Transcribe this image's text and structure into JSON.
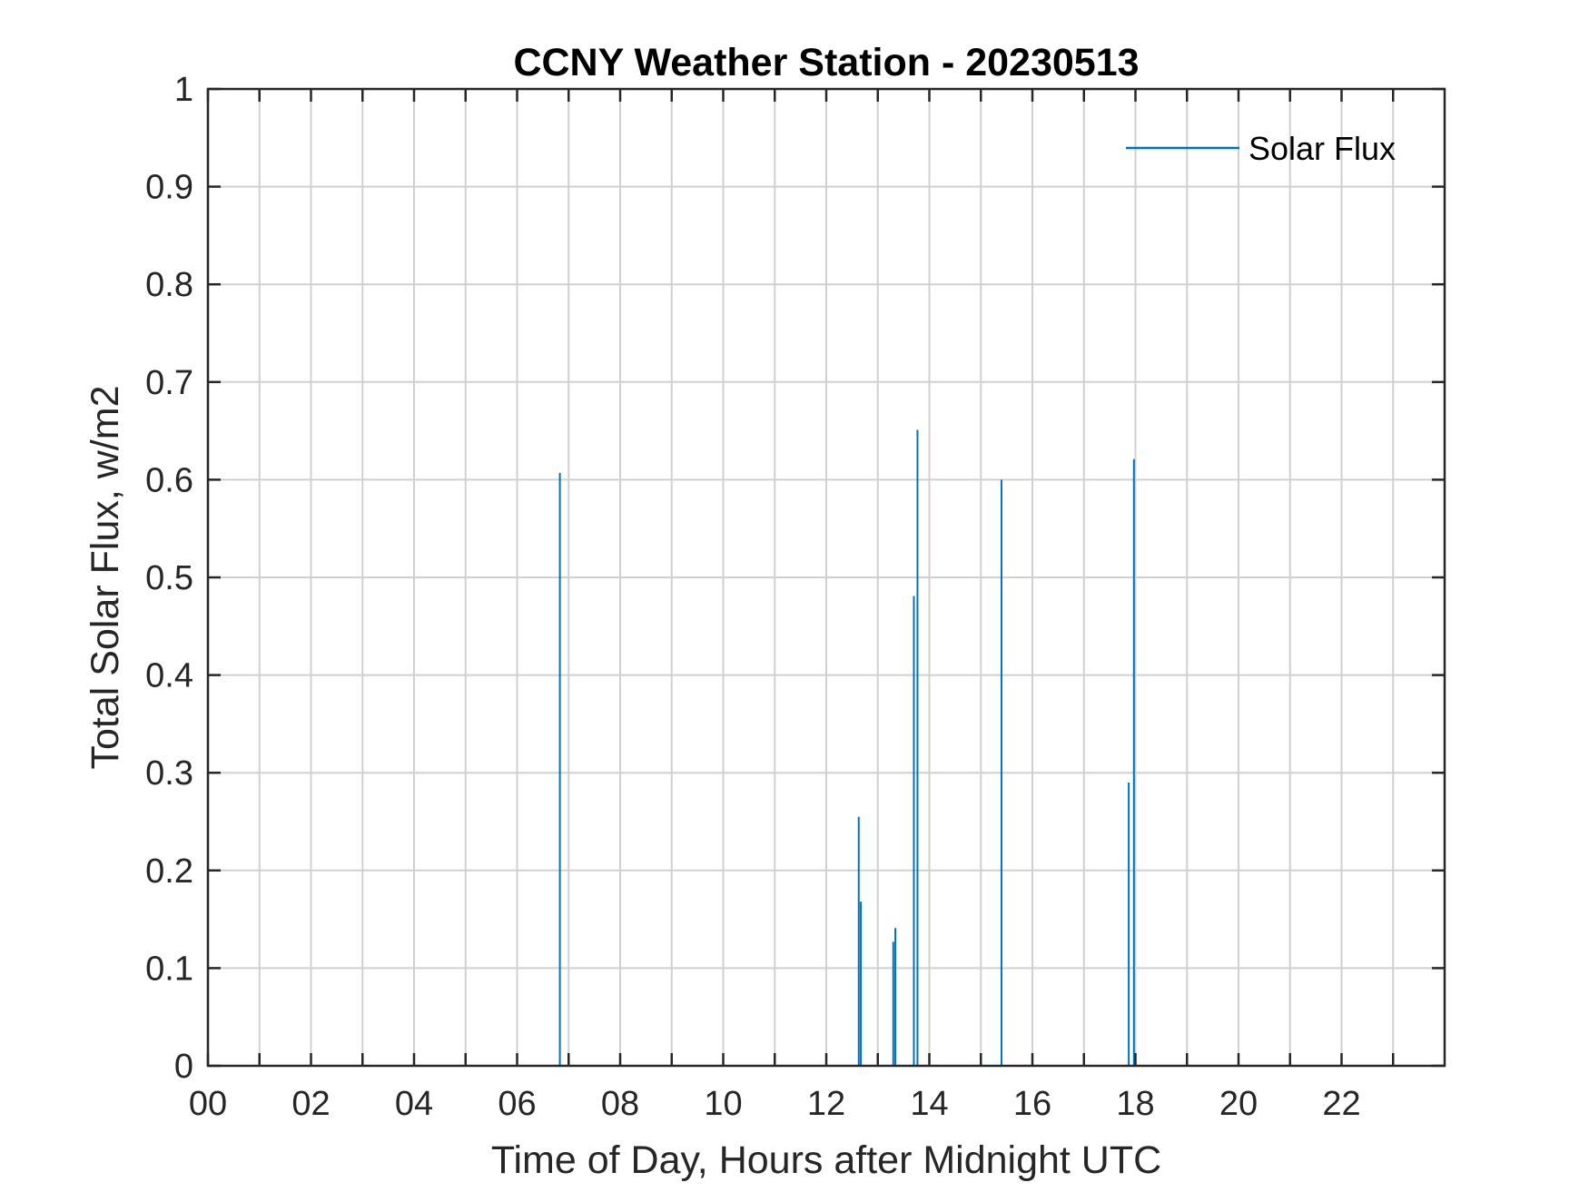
{
  "chart_data": {
    "type": "line",
    "title": "CCNY Weather Station - 20230513",
    "xlabel": "Time of Day, Hours after Midnight UTC",
    "ylabel": "Total Solar Flux, w/m2",
    "xlim": [
      0,
      24
    ],
    "ylim": [
      0,
      1
    ],
    "xtick_values": [
      0,
      2,
      4,
      6,
      8,
      10,
      12,
      14,
      16,
      18,
      20,
      22
    ],
    "xtick_labels": [
      "00",
      "02",
      "04",
      "06",
      "08",
      "10",
      "12",
      "14",
      "16",
      "18",
      "20",
      "22"
    ],
    "xgrid_values": [
      0,
      1,
      2,
      3,
      4,
      5,
      6,
      7,
      8,
      9,
      10,
      11,
      12,
      13,
      14,
      15,
      16,
      17,
      18,
      19,
      20,
      21,
      22,
      23
    ],
    "ytick_values": [
      0,
      0.1,
      0.2,
      0.3,
      0.4,
      0.5,
      0.6,
      0.7,
      0.8,
      0.9,
      1
    ],
    "ytick_labels": [
      "0",
      "0.1",
      "0.2",
      "0.3",
      "0.4",
      "0.5",
      "0.6",
      "0.7",
      "0.8",
      "0.9",
      "1"
    ],
    "grid": true,
    "legend_position": "top-right",
    "series": [
      {
        "name": "Solar Flux",
        "color": "#0072BD",
        "spikes": [
          {
            "x": 6.83,
            "y": 0.607
          },
          {
            "x": 12.63,
            "y": 0.255
          },
          {
            "x": 12.67,
            "y": 0.168
          },
          {
            "x": 13.3,
            "y": 0.127
          },
          {
            "x": 13.34,
            "y": 0.141
          },
          {
            "x": 13.7,
            "y": 0.481
          },
          {
            "x": 13.77,
            "y": 0.651
          },
          {
            "x": 15.4,
            "y": 0.6
          },
          {
            "x": 17.87,
            "y": 0.29
          },
          {
            "x": 17.97,
            "y": 0.621
          }
        ]
      }
    ]
  }
}
